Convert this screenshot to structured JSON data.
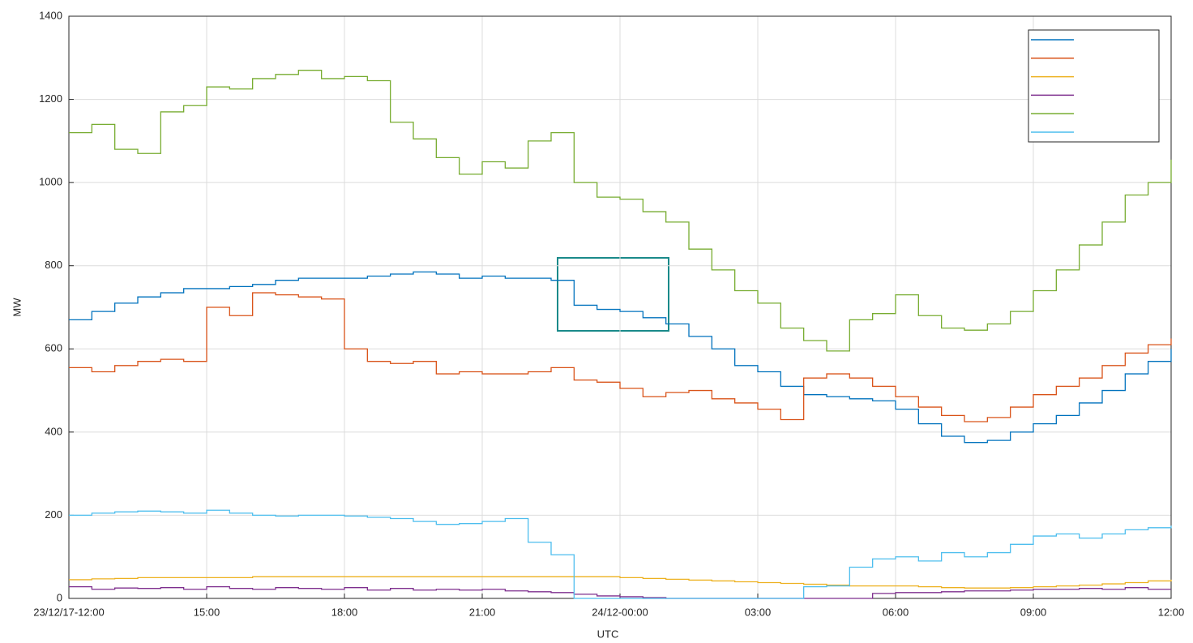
{
  "chart_data": {
    "type": "line",
    "step": "post",
    "x_label": "UTC",
    "y_label": "MW",
    "xlim": [
      "2017-12-23T12:00",
      "2017-12-24T12:00"
    ],
    "xticks": [
      {
        "value": "2017-12-23T12:00",
        "label": "23/12/17-12:00"
      },
      {
        "value": "2017-12-23T15:00",
        "label": "15:00"
      },
      {
        "value": "2017-12-23T18:00",
        "label": "18:00"
      },
      {
        "value": "2017-12-23T21:00",
        "label": "21:00"
      },
      {
        "value": "2017-12-24T00:00",
        "label": "24/12-00:00"
      },
      {
        "value": "2017-12-24T03:00",
        "label": "03:00"
      },
      {
        "value": "2017-12-24T06:00",
        "label": "06:00"
      },
      {
        "value": "2017-12-24T09:00",
        "label": "09:00"
      },
      {
        "value": "2017-12-24T12:00",
        "label": "12:00"
      }
    ],
    "ylim": [
      0,
      1400
    ],
    "yticks": [
      0,
      200,
      400,
      600,
      800,
      1000,
      1200,
      1400
    ],
    "grid": true,
    "legend": "upper right",
    "x": [
      "2017-12-23T12:00",
      "2017-12-23T12:30",
      "2017-12-23T13:00",
      "2017-12-23T13:30",
      "2017-12-23T14:00",
      "2017-12-23T14:30",
      "2017-12-23T15:00",
      "2017-12-23T15:30",
      "2017-12-23T16:00",
      "2017-12-23T16:30",
      "2017-12-23T17:00",
      "2017-12-23T17:30",
      "2017-12-23T18:00",
      "2017-12-23T18:30",
      "2017-12-23T19:00",
      "2017-12-23T19:30",
      "2017-12-23T20:00",
      "2017-12-23T20:30",
      "2017-12-23T21:00",
      "2017-12-23T21:30",
      "2017-12-23T22:00",
      "2017-12-23T22:30",
      "2017-12-23T23:00",
      "2017-12-23T23:30",
      "2017-12-24T00:00",
      "2017-12-24T00:30",
      "2017-12-24T01:00",
      "2017-12-24T01:30",
      "2017-12-24T02:00",
      "2017-12-24T02:30",
      "2017-12-24T03:00",
      "2017-12-24T03:30",
      "2017-12-24T04:00",
      "2017-12-24T04:30",
      "2017-12-24T05:00",
      "2017-12-24T05:30",
      "2017-12-24T06:00",
      "2017-12-24T06:30",
      "2017-12-24T07:00",
      "2017-12-24T07:30",
      "2017-12-24T08:00",
      "2017-12-24T08:30",
      "2017-12-24T09:00",
      "2017-12-24T09:30",
      "2017-12-24T10:00",
      "2017-12-24T10:30",
      "2017-12-24T11:00",
      "2017-12-24T11:30",
      "2017-12-24T12:00"
    ],
    "series": [
      {
        "color": "#0072BD",
        "values": [
          670,
          690,
          710,
          725,
          735,
          745,
          745,
          750,
          755,
          765,
          770,
          770,
          770,
          775,
          780,
          785,
          780,
          770,
          775,
          770,
          770,
          765,
          705,
          695,
          690,
          675,
          660,
          630,
          600,
          560,
          545,
          510,
          490,
          485,
          480,
          475,
          455,
          420,
          390,
          375,
          380,
          400,
          420,
          440,
          470,
          500,
          540,
          570,
          600
        ]
      },
      {
        "color": "#D95319",
        "values": [
          555,
          545,
          560,
          570,
          575,
          570,
          700,
          680,
          735,
          730,
          725,
          720,
          600,
          570,
          565,
          570,
          540,
          545,
          540,
          540,
          545,
          555,
          525,
          520,
          505,
          485,
          495,
          500,
          480,
          470,
          455,
          430,
          530,
          540,
          530,
          510,
          485,
          460,
          440,
          425,
          435,
          460,
          490,
          510,
          530,
          560,
          590,
          610,
          625
        ]
      },
      {
        "color": "#EDB120",
        "values": [
          45,
          47,
          48,
          50,
          50,
          50,
          50,
          50,
          52,
          52,
          52,
          52,
          52,
          52,
          52,
          52,
          52,
          52,
          52,
          52,
          52,
          52,
          52,
          52,
          50,
          48,
          46,
          44,
          42,
          40,
          38,
          36,
          34,
          32,
          30,
          30,
          30,
          28,
          26,
          25,
          25,
          26,
          28,
          30,
          32,
          35,
          38,
          42,
          45
        ]
      },
      {
        "color": "#7E2F8E",
        "values": [
          28,
          22,
          25,
          24,
          26,
          22,
          28,
          24,
          22,
          26,
          24,
          22,
          26,
          20,
          24,
          20,
          22,
          20,
          22,
          18,
          16,
          14,
          10,
          6,
          4,
          2,
          0,
          0,
          0,
          0,
          0,
          0,
          0,
          0,
          0,
          12,
          14,
          14,
          16,
          18,
          18,
          20,
          22,
          22,
          24,
          22,
          26,
          22,
          22
        ]
      },
      {
        "color": "#77AC30",
        "values": [
          1120,
          1140,
          1080,
          1070,
          1170,
          1185,
          1230,
          1225,
          1250,
          1260,
          1270,
          1250,
          1255,
          1245,
          1145,
          1105,
          1060,
          1020,
          1050,
          1035,
          1100,
          1120,
          1000,
          965,
          960,
          930,
          905,
          840,
          790,
          740,
          710,
          650,
          620,
          595,
          670,
          685,
          730,
          680,
          650,
          645,
          660,
          690,
          740,
          790,
          850,
          905,
          970,
          1000,
          1055
        ]
      },
      {
        "color": "#4DBEEE",
        "values": [
          200,
          205,
          208,
          210,
          208,
          205,
          212,
          205,
          200,
          198,
          200,
          200,
          198,
          195,
          192,
          185,
          178,
          180,
          185,
          192,
          135,
          105,
          0,
          0,
          0,
          0,
          0,
          0,
          0,
          0,
          0,
          0,
          28,
          30,
          75,
          95,
          100,
          90,
          110,
          100,
          110,
          130,
          150,
          155,
          145,
          155,
          165,
          170,
          175
        ]
      }
    ]
  }
}
